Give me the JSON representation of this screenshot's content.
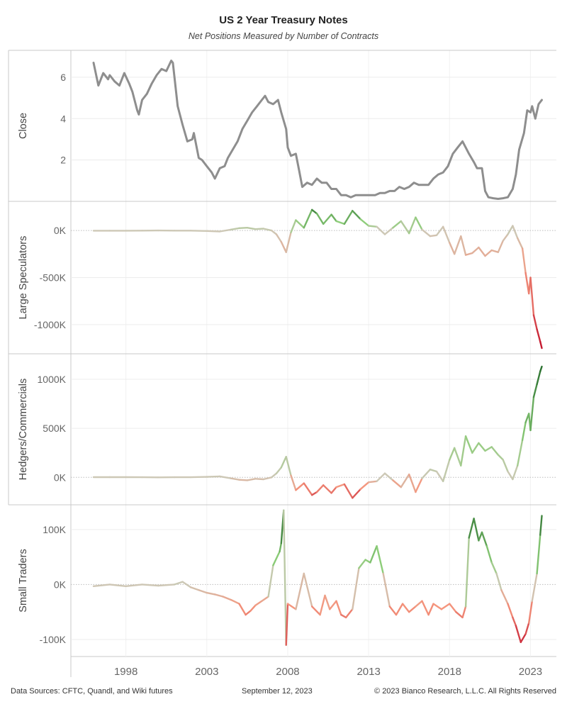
{
  "title": "US 2 Year Treasury Notes",
  "subtitle": "Net Positions Measured by Number of Contracts",
  "footer": {
    "source": "Data Sources: CFTC, Quandl, and Wiki futures",
    "date": "September 12, 2023",
    "copyright": "© 2023 Bianco Research, L.L.C. All Rights Reserved"
  },
  "chart_data": {
    "type": "line",
    "x_ticks": [
      1998,
      2003,
      2008,
      2013,
      2018,
      2023
    ],
    "x_range": [
      1994.6,
      2024.6
    ],
    "panels": [
      {
        "name": "Close",
        "ylabel": "Close",
        "y_ticks": [
          2,
          4,
          6
        ],
        "y_tick_labels": [
          "2",
          "4",
          "6"
        ],
        "y_range": [
          0,
          7.3
        ],
        "zero_line": false,
        "color_mode": "gray",
        "color": "#8e8e8e",
        "x": [
          1996.0,
          1996.3,
          1996.6,
          1996.9,
          1997.0,
          1997.3,
          1997.6,
          1997.9,
          1998.2,
          1998.4,
          1998.7,
          1998.8,
          1999.0,
          1999.3,
          1999.6,
          1999.9,
          2000.2,
          2000.5,
          2000.8,
          2000.9,
          2001.2,
          2001.5,
          2001.8,
          2002.1,
          2002.2,
          2002.5,
          2002.7,
          2003.0,
          2003.3,
          2003.5,
          2003.8,
          2004.1,
          2004.3,
          2004.6,
          2004.9,
          2005.2,
          2005.5,
          2005.8,
          2006.1,
          2006.4,
          2006.6,
          2006.8,
          2007.1,
          2007.4,
          2007.6,
          2007.9,
          2008.0,
          2008.2,
          2008.5,
          2008.7,
          2008.9,
          2009.2,
          2009.5,
          2009.8,
          2010.1,
          2010.4,
          2010.7,
          2011.0,
          2011.3,
          2011.6,
          2011.9,
          2012.2,
          2012.5,
          2012.8,
          2013.1,
          2013.4,
          2013.7,
          2014.0,
          2014.3,
          2014.6,
          2014.9,
          2015.2,
          2015.5,
          2015.8,
          2016.1,
          2016.4,
          2016.7,
          2017.0,
          2017.3,
          2017.6,
          2017.9,
          2018.2,
          2018.5,
          2018.8,
          2019.0,
          2019.2,
          2019.5,
          2019.7,
          2020.0,
          2020.2,
          2020.4,
          2020.7,
          2021.0,
          2021.3,
          2021.6,
          2021.9,
          2022.1,
          2022.3,
          2022.6,
          2022.8,
          2023.0,
          2023.1,
          2023.3,
          2023.5,
          2023.7
        ],
        "values": [
          6.7,
          5.6,
          6.2,
          5.9,
          6.1,
          5.8,
          5.6,
          6.2,
          5.7,
          5.3,
          4.4,
          4.2,
          4.9,
          5.2,
          5.7,
          6.1,
          6.4,
          6.3,
          6.8,
          6.7,
          4.6,
          3.7,
          2.9,
          3.0,
          3.3,
          2.1,
          2.0,
          1.7,
          1.4,
          1.1,
          1.6,
          1.7,
          2.1,
          2.5,
          2.9,
          3.5,
          3.9,
          4.3,
          4.6,
          4.9,
          5.1,
          4.8,
          4.7,
          4.9,
          4.3,
          3.5,
          2.6,
          2.2,
          2.3,
          1.5,
          0.7,
          0.9,
          0.8,
          1.1,
          0.9,
          0.9,
          0.6,
          0.6,
          0.3,
          0.3,
          0.2,
          0.3,
          0.3,
          0.3,
          0.3,
          0.3,
          0.4,
          0.4,
          0.5,
          0.5,
          0.7,
          0.6,
          0.7,
          0.9,
          0.8,
          0.8,
          0.8,
          1.1,
          1.3,
          1.4,
          1.7,
          2.3,
          2.6,
          2.9,
          2.6,
          2.3,
          1.9,
          1.6,
          1.6,
          0.5,
          0.2,
          0.15,
          0.12,
          0.15,
          0.2,
          0.6,
          1.3,
          2.5,
          3.3,
          4.4,
          4.3,
          4.6,
          4.0,
          4.7,
          4.9
        ]
      },
      {
        "name": "Large Speculators",
        "ylabel": "Large Speculators",
        "y_ticks": [
          0,
          -500000,
          -1000000
        ],
        "y_tick_labels": [
          "0K",
          "-500K",
          "-1000K"
        ],
        "y_range": [
          -1310000,
          310000
        ],
        "zero_line": true,
        "color_mode": "diverging",
        "pos_max": 250000,
        "neg_max": 1250000,
        "x": [
          1996.0,
          1997.0,
          1998.0,
          1999.0,
          2000.0,
          2001.0,
          2002.0,
          2003.0,
          2003.8,
          2004.5,
          2005.0,
          2005.5,
          2006.0,
          2006.5,
          2007.0,
          2007.3,
          2007.6,
          2007.9,
          2008.2,
          2008.5,
          2009.0,
          2009.5,
          2009.8,
          2010.2,
          2010.7,
          2011.0,
          2011.5,
          2012.0,
          2012.5,
          2013.0,
          2013.5,
          2014.0,
          2014.5,
          2015.0,
          2015.5,
          2015.9,
          2016.3,
          2016.8,
          2017.2,
          2017.6,
          2018.0,
          2018.3,
          2018.7,
          2019.0,
          2019.4,
          2019.8,
          2020.2,
          2020.6,
          2021.0,
          2021.3,
          2021.6,
          2021.9,
          2022.2,
          2022.5,
          2022.7,
          2022.9,
          2023.0,
          2023.2,
          2023.4,
          2023.6,
          2023.7
        ],
        "values": [
          -2000,
          -2000,
          -2000,
          -1000,
          0,
          -1000,
          -1000,
          -5000,
          -10000,
          10000,
          25000,
          30000,
          15000,
          20000,
          0,
          -40000,
          -120000,
          -230000,
          -20000,
          110000,
          30000,
          220000,
          180000,
          70000,
          170000,
          100000,
          70000,
          210000,
          120000,
          50000,
          40000,
          -40000,
          30000,
          100000,
          -30000,
          140000,
          10000,
          -60000,
          -50000,
          40000,
          -130000,
          -250000,
          -60000,
          -260000,
          -240000,
          -180000,
          -270000,
          -210000,
          -230000,
          -110000,
          -40000,
          50000,
          -80000,
          -190000,
          -450000,
          -670000,
          -500000,
          -900000,
          -1050000,
          -1180000,
          -1250000
        ]
      },
      {
        "name": "Hedgers/Commercials",
        "ylabel": "Hedgers/Commercials",
        "y_ticks": [
          0,
          500000,
          1000000
        ],
        "y_tick_labels": [
          "0K",
          "500K",
          "1000K"
        ],
        "y_range": [
          -280000,
          1260000
        ],
        "zero_line": true,
        "color_mode": "diverging",
        "pos_max": 1130000,
        "neg_max": 250000,
        "x": [
          1996.0,
          1997.0,
          1998.0,
          1999.0,
          2000.0,
          2001.0,
          2002.0,
          2003.0,
          2003.8,
          2004.5,
          2005.0,
          2005.5,
          2006.0,
          2006.5,
          2007.0,
          2007.3,
          2007.6,
          2007.9,
          2008.2,
          2008.5,
          2009.0,
          2009.5,
          2009.8,
          2010.2,
          2010.7,
          2011.0,
          2011.5,
          2012.0,
          2012.5,
          2013.0,
          2013.5,
          2014.0,
          2014.5,
          2015.0,
          2015.5,
          2015.9,
          2016.3,
          2016.8,
          2017.2,
          2017.6,
          2018.0,
          2018.3,
          2018.7,
          2019.0,
          2019.4,
          2019.8,
          2020.2,
          2020.6,
          2021.0,
          2021.3,
          2021.6,
          2021.9,
          2022.2,
          2022.5,
          2022.7,
          2022.9,
          2023.0,
          2023.2,
          2023.4,
          2023.6,
          2023.7
        ],
        "values": [
          2000,
          2000,
          2000,
          1000,
          0,
          1000,
          1000,
          5000,
          10000,
          -10000,
          -25000,
          -30000,
          -15000,
          -20000,
          0,
          40000,
          100000,
          210000,
          20000,
          -130000,
          -60000,
          -180000,
          -150000,
          -80000,
          -160000,
          -100000,
          -70000,
          -210000,
          -120000,
          -50000,
          -40000,
          40000,
          -30000,
          -100000,
          30000,
          -150000,
          -10000,
          80000,
          60000,
          -40000,
          180000,
          300000,
          120000,
          420000,
          250000,
          350000,
          270000,
          310000,
          230000,
          180000,
          60000,
          -20000,
          120000,
          380000,
          560000,
          650000,
          480000,
          820000,
          950000,
          1080000,
          1130000
        ]
      },
      {
        "name": "Small Traders",
        "ylabel": "Small Traders",
        "y_ticks": [
          100000,
          0,
          -100000
        ],
        "y_tick_labels": [
          "100K",
          "0K",
          "-100K"
        ],
        "y_range": [
          -131000,
          145000
        ],
        "zero_line": true,
        "color_mode": "diverging",
        "pos_max": 130000,
        "neg_max": 115000,
        "x": [
          1996.0,
          1997.0,
          1998.0,
          1999.0,
          2000.0,
          2001.0,
          2001.5,
          2002.0,
          2002.5,
          2003.0,
          2003.5,
          2004.0,
          2004.5,
          2005.0,
          2005.4,
          2005.7,
          2006.0,
          2006.4,
          2006.8,
          2007.1,
          2007.5,
          2007.6,
          2007.75,
          2007.9,
          2008.0,
          2008.5,
          2009.0,
          2009.5,
          2010.0,
          2010.3,
          2010.6,
          2011.0,
          2011.3,
          2011.6,
          2012.0,
          2012.4,
          2012.8,
          2013.1,
          2013.5,
          2013.9,
          2014.3,
          2014.7,
          2015.1,
          2015.5,
          2015.9,
          2016.3,
          2016.7,
          2017.0,
          2017.5,
          2018.0,
          2018.4,
          2018.8,
          2019.0,
          2019.2,
          2019.5,
          2019.8,
          2020.0,
          2020.3,
          2020.6,
          2020.9,
          2021.2,
          2021.6,
          2021.9,
          2022.1,
          2022.4,
          2022.7,
          2022.9,
          2023.1,
          2023.4,
          2023.6,
          2023.7
        ],
        "values": [
          -3000,
          0,
          -3000,
          0,
          -2000,
          0,
          5000,
          -5000,
          -10000,
          -15000,
          -18000,
          -22000,
          -28000,
          -35000,
          -55000,
          -48000,
          -38000,
          -30000,
          -22000,
          35000,
          60000,
          75000,
          135000,
          -110000,
          -35000,
          -45000,
          20000,
          -40000,
          -55000,
          -20000,
          -45000,
          -30000,
          -55000,
          -60000,
          -45000,
          30000,
          45000,
          40000,
          70000,
          20000,
          -40000,
          -55000,
          -35000,
          -50000,
          -40000,
          -30000,
          -55000,
          -35000,
          -45000,
          -35000,
          -50000,
          -60000,
          -40000,
          85000,
          120000,
          80000,
          95000,
          70000,
          40000,
          20000,
          -10000,
          -35000,
          -60000,
          -75000,
          -105000,
          -90000,
          -70000,
          -30000,
          20000,
          90000,
          125000
        ]
      }
    ]
  }
}
